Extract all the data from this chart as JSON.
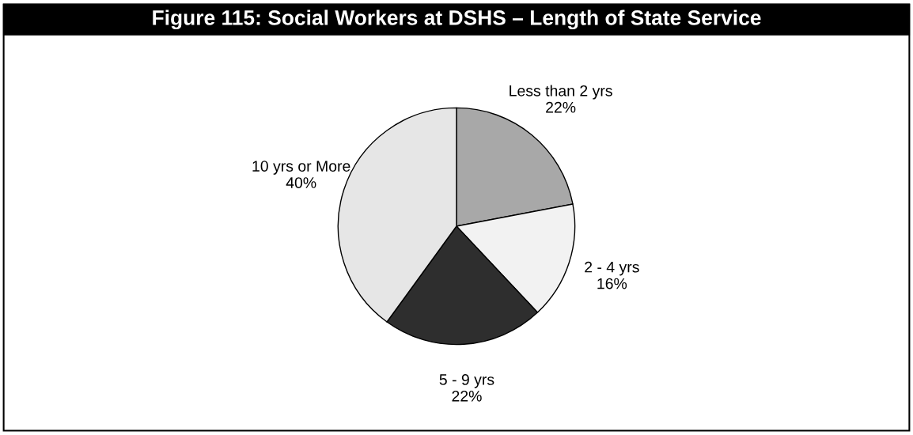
{
  "chart_data": {
    "type": "pie",
    "title": "Figure 115: Social Workers at DSHS – Length of State Service",
    "categories": [
      "Less than 2 yrs",
      "2 - 4 yrs",
      "5 - 9 yrs",
      "10 yrs or More"
    ],
    "values": [
      22,
      16,
      22,
      40
    ],
    "value_labels": [
      "22%",
      "16%",
      "22%",
      "40%"
    ],
    "colors": [
      "#a8a8a8",
      "#f2f2f2",
      "#2e2e2e",
      "#e6e6e6"
    ],
    "legend": false
  }
}
